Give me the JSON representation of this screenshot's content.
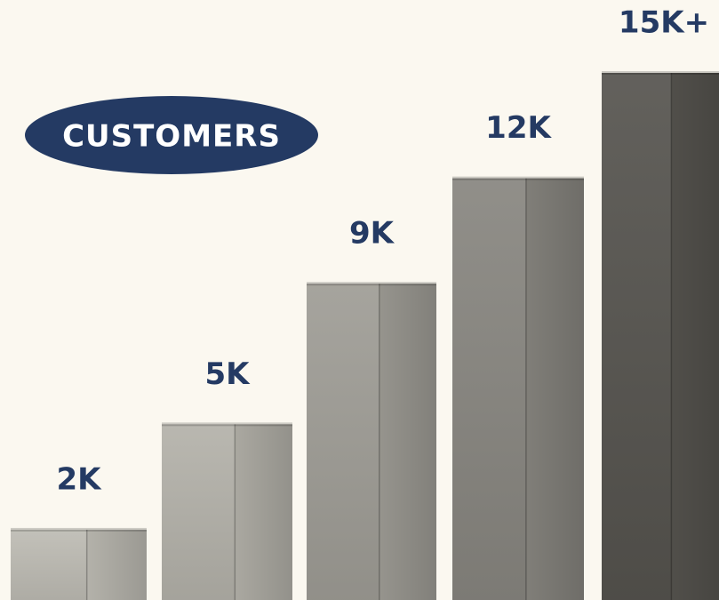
{
  "chart_data": {
    "type": "bar",
    "title": "CUSTOMERS",
    "values": [
      2000,
      5000,
      9000,
      12000,
      15000
    ],
    "value_labels": [
      "2K",
      "5K",
      "9K",
      "12K",
      "15K+"
    ],
    "colors": [
      "#bdbbb3",
      "#b3b1a9",
      "#9e9c95",
      "#87857f",
      "#55534e"
    ]
  }
}
